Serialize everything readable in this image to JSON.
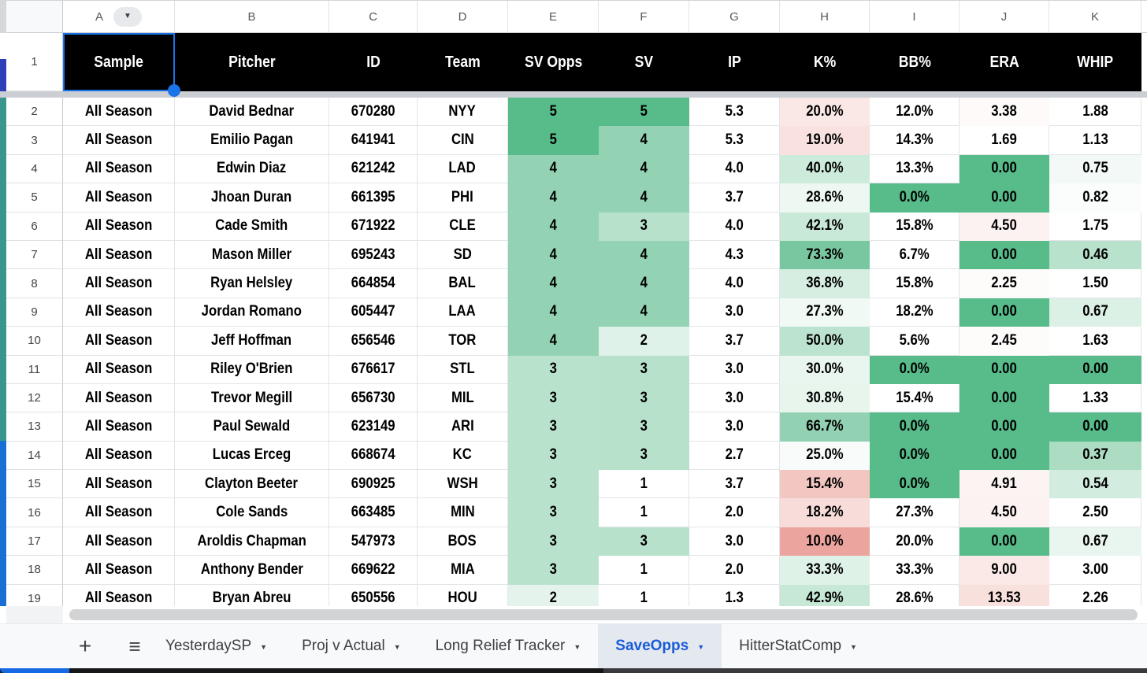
{
  "grid": {
    "column_letters": [
      "A",
      "B",
      "C",
      "D",
      "E",
      "F",
      "G",
      "H",
      "I",
      "J",
      "K"
    ],
    "header_row": {
      "num": "1",
      "labels": [
        "Sample",
        "Pitcher",
        "ID",
        "Team",
        "SV Opps",
        "SV",
        "IP",
        "K%",
        "BB%",
        "ERA",
        "WHIP"
      ],
      "bg": "#000000",
      "text_color": "#FFFFFF",
      "selected_cell": "A1"
    },
    "rows": [
      {
        "num": "2",
        "sample": "All Season",
        "pitcher": "David Bednar",
        "id": "670280",
        "team": "NYY",
        "sv_opps": "5",
        "sv": "5",
        "ip": "5.3",
        "k_pct": "20.0%",
        "bb_pct": "12.0%",
        "era": "3.38",
        "whip": "1.88",
        "colors": {
          "sv_opps": "#57BB8A",
          "sv": "#57BB8A",
          "k_pct": "#FAE8E6",
          "bb_pct": "#FFFFFF",
          "era": "#FEFAFA",
          "whip": "#FFFFFF"
        }
      },
      {
        "num": "3",
        "sample": "All Season",
        "pitcher": "Emilio Pagan",
        "id": "641941",
        "team": "CIN",
        "sv_opps": "5",
        "sv": "4",
        "ip": "5.3",
        "k_pct": "19.0%",
        "bb_pct": "14.3%",
        "era": "1.69",
        "whip": "1.13",
        "colors": {
          "sv_opps": "#57BB8A",
          "sv": "#93D2B2",
          "k_pct": "#F8E1DE",
          "bb_pct": "#FFFFFF",
          "era": "#FFFFFF",
          "whip": "#FFFFFF"
        }
      },
      {
        "num": "4",
        "sample": "All Season",
        "pitcher": "Edwin Diaz",
        "id": "621242",
        "team": "LAD",
        "sv_opps": "4",
        "sv": "4",
        "ip": "4.0",
        "k_pct": "40.0%",
        "bb_pct": "13.3%",
        "era": "0.00",
        "whip": "0.75",
        "colors": {
          "sv_opps": "#93D2B2",
          "sv": "#93D2B2",
          "k_pct": "#CDEBDB",
          "bb_pct": "#FFFFFF",
          "era": "#57BB8A",
          "whip": "#F2F9F6"
        }
      },
      {
        "num": "5",
        "sample": "All Season",
        "pitcher": "Jhoan Duran",
        "id": "661395",
        "team": "PHI",
        "sv_opps": "4",
        "sv": "4",
        "ip": "3.7",
        "k_pct": "28.6%",
        "bb_pct": "0.0%",
        "era": "0.00",
        "whip": "0.82",
        "colors": {
          "sv_opps": "#93D2B2",
          "sv": "#93D2B2",
          "k_pct": "#EDF8F2",
          "bb_pct": "#57BB8A",
          "era": "#57BB8A",
          "whip": "#FAFDFB"
        }
      },
      {
        "num": "6",
        "sample": "All Season",
        "pitcher": "Cade Smith",
        "id": "671922",
        "team": "CLE",
        "sv_opps": "4",
        "sv": "3",
        "ip": "4.0",
        "k_pct": "42.1%",
        "bb_pct": "15.8%",
        "era": "4.50",
        "whip": "1.75",
        "colors": {
          "sv_opps": "#93D2B2",
          "sv": "#B7E1CB",
          "k_pct": "#C9E9D8",
          "bb_pct": "#FFFFFF",
          "era": "#FCF2F1",
          "whip": "#FFFFFF"
        }
      },
      {
        "num": "7",
        "sample": "All Season",
        "pitcher": "Mason Miller",
        "id": "695243",
        "team": "SD",
        "sv_opps": "4",
        "sv": "4",
        "ip": "4.3",
        "k_pct": "73.3%",
        "bb_pct": "6.7%",
        "era": "0.00",
        "whip": "0.46",
        "colors": {
          "sv_opps": "#93D2B2",
          "sv": "#93D2B2",
          "k_pct": "#79C7A0",
          "bb_pct": "#FFFFFF",
          "era": "#57BB8A",
          "whip": "#B9E2CC"
        }
      },
      {
        "num": "8",
        "sample": "All Season",
        "pitcher": "Ryan Helsley",
        "id": "664854",
        "team": "BAL",
        "sv_opps": "4",
        "sv": "4",
        "ip": "4.0",
        "k_pct": "36.8%",
        "bb_pct": "15.8%",
        "era": "2.25",
        "whip": "1.50",
        "colors": {
          "sv_opps": "#93D2B2",
          "sv": "#93D2B2",
          "k_pct": "#D6EEE2",
          "bb_pct": "#FFFFFF",
          "era": "#FEFBFB",
          "whip": "#FFFFFF"
        }
      },
      {
        "num": "9",
        "sample": "All Season",
        "pitcher": "Jordan Romano",
        "id": "605447",
        "team": "LAA",
        "sv_opps": "4",
        "sv": "4",
        "ip": "3.0",
        "k_pct": "27.3%",
        "bb_pct": "18.2%",
        "era": "0.00",
        "whip": "0.67",
        "colors": {
          "sv_opps": "#93D2B2",
          "sv": "#93D2B2",
          "k_pct": "#F0F9F4",
          "bb_pct": "#FFFFFF",
          "era": "#57BB8A",
          "whip": "#DCF1E6"
        }
      },
      {
        "num": "10",
        "sample": "All Season",
        "pitcher": "Jeff Hoffman",
        "id": "656546",
        "team": "TOR",
        "sv_opps": "4",
        "sv": "2",
        "ip": "3.7",
        "k_pct": "50.0%",
        "bb_pct": "5.6%",
        "era": "2.45",
        "whip": "1.63",
        "colors": {
          "sv_opps": "#93D2B2",
          "sv": "#DFF2E9",
          "k_pct": "#BCE3CF",
          "bb_pct": "#FFFFFF",
          "era": "#FEFBFB",
          "whip": "#FFFFFF"
        }
      },
      {
        "num": "11",
        "sample": "All Season",
        "pitcher": "Riley O'Brien",
        "id": "676617",
        "team": "STL",
        "sv_opps": "3",
        "sv": "3",
        "ip": "3.0",
        "k_pct": "30.0%",
        "bb_pct": "0.0%",
        "era": "0.00",
        "whip": "0.00",
        "colors": {
          "sv_opps": "#B9E2CC",
          "sv": "#B7E1CB",
          "k_pct": "#E9F6EF",
          "bb_pct": "#57BB8A",
          "era": "#57BB8A",
          "whip": "#57BB8A"
        }
      },
      {
        "num": "12",
        "sample": "All Season",
        "pitcher": "Trevor Megill",
        "id": "656730",
        "team": "MIL",
        "sv_opps": "3",
        "sv": "3",
        "ip": "3.0",
        "k_pct": "30.8%",
        "bb_pct": "15.4%",
        "era": "0.00",
        "whip": "1.33",
        "colors": {
          "sv_opps": "#B9E2CC",
          "sv": "#B7E1CB",
          "k_pct": "#E7F5ED",
          "bb_pct": "#FFFFFF",
          "era": "#57BB8A",
          "whip": "#FFFFFF"
        }
      },
      {
        "num": "13",
        "sample": "All Season",
        "pitcher": "Paul Sewald",
        "id": "623149",
        "team": "ARI",
        "sv_opps": "3",
        "sv": "3",
        "ip": "3.0",
        "k_pct": "66.7%",
        "bb_pct": "0.0%",
        "era": "0.00",
        "whip": "0.00",
        "colors": {
          "sv_opps": "#B9E2CC",
          "sv": "#B7E1CB",
          "k_pct": "#92D1B1",
          "bb_pct": "#57BB8A",
          "era": "#57BB8A",
          "whip": "#57BB8A"
        }
      },
      {
        "num": "14",
        "sample": "All Season",
        "pitcher": "Lucas Erceg",
        "id": "668674",
        "team": "KC",
        "sv_opps": "3",
        "sv": "3",
        "ip": "2.7",
        "k_pct": "25.0%",
        "bb_pct": "0.0%",
        "era": "0.00",
        "whip": "0.37",
        "colors": {
          "sv_opps": "#B9E2CC",
          "sv": "#B7E1CB",
          "k_pct": "#F8FBFA",
          "bb_pct": "#57BB8A",
          "era": "#57BB8A",
          "whip": "#ACDDC3"
        }
      },
      {
        "num": "15",
        "sample": "All Season",
        "pitcher": "Clayton Beeter",
        "id": "690925",
        "team": "WSH",
        "sv_opps": "3",
        "sv": "1",
        "ip": "3.7",
        "k_pct": "15.4%",
        "bb_pct": "0.0%",
        "era": "4.91",
        "whip": "0.54",
        "colors": {
          "sv_opps": "#B9E2CC",
          "sv": "#FFFFFF",
          "k_pct": "#F2C6C1",
          "bb_pct": "#57BB8A",
          "era": "#FCF4F3",
          "whip": "#D2ECDF"
        }
      },
      {
        "num": "16",
        "sample": "All Season",
        "pitcher": "Cole Sands",
        "id": "663485",
        "team": "MIN",
        "sv_opps": "3",
        "sv": "1",
        "ip": "2.0",
        "k_pct": "18.2%",
        "bb_pct": "27.3%",
        "era": "4.50",
        "whip": "2.50",
        "colors": {
          "sv_opps": "#B9E2CC",
          "sv": "#FFFFFF",
          "k_pct": "#F7DCD9",
          "bb_pct": "#FFFFFF",
          "era": "#FCF2F1",
          "whip": "#FFFFFF"
        }
      },
      {
        "num": "17",
        "sample": "All Season",
        "pitcher": "Aroldis Chapman",
        "id": "547973",
        "team": "BOS",
        "sv_opps": "3",
        "sv": "3",
        "ip": "3.0",
        "k_pct": "10.0%",
        "bb_pct": "20.0%",
        "era": "0.00",
        "whip": "0.67",
        "colors": {
          "sv_opps": "#B9E2CC",
          "sv": "#B7E1CB",
          "k_pct": "#EBA49E",
          "bb_pct": "#FFFFFF",
          "era": "#57BB8A",
          "whip": "#E9F6EF"
        }
      },
      {
        "num": "18",
        "sample": "All Season",
        "pitcher": "Anthony Bender",
        "id": "669622",
        "team": "MIA",
        "sv_opps": "3",
        "sv": "1",
        "ip": "2.0",
        "k_pct": "33.3%",
        "bb_pct": "33.3%",
        "era": "9.00",
        "whip": "3.00",
        "colors": {
          "sv_opps": "#B9E2CC",
          "sv": "#FFFFFF",
          "k_pct": "#DFF2E8",
          "bb_pct": "#FFFFFF",
          "era": "#FAE9E7",
          "whip": "#FFFFFF"
        }
      },
      {
        "num": "19",
        "sample": "All Season",
        "pitcher": "Bryan Abreu",
        "id": "650556",
        "team": "HOU",
        "sv_opps": "2",
        "sv": "1",
        "ip": "1.3",
        "k_pct": "42.9%",
        "bb_pct": "28.6%",
        "era": "13.53",
        "whip": "2.26",
        "colors": {
          "sv_opps": "#E4F3EB",
          "sv": "#FFFFFF",
          "k_pct": "#C8E8D7",
          "bb_pct": "#FFFFFF",
          "era": "#F8E0DD",
          "whip": "#FFFFFF"
        }
      }
    ]
  },
  "icons": {
    "plus": "+",
    "menu": "≡",
    "caret_down": "▼"
  },
  "tab_bar": {
    "tabs": [
      {
        "label": "YesterdaySP",
        "active": false
      },
      {
        "label": "Proj v Actual",
        "active": false
      },
      {
        "label": "Long Relief Tracker",
        "active": false
      },
      {
        "label": "SaveOpps",
        "active": true
      },
      {
        "label": "HitterStatComp",
        "active": false
      }
    ],
    "active_text_color": "#1A5CD8",
    "active_bg_color": "#E4E8EF"
  },
  "colors": {
    "conditional_green_full": "#57BB8A",
    "conditional_red_full": "#E67C73",
    "selection_blue": "#1A73E8",
    "header_bg": "#000000",
    "gridline": "#E3E4E7"
  }
}
